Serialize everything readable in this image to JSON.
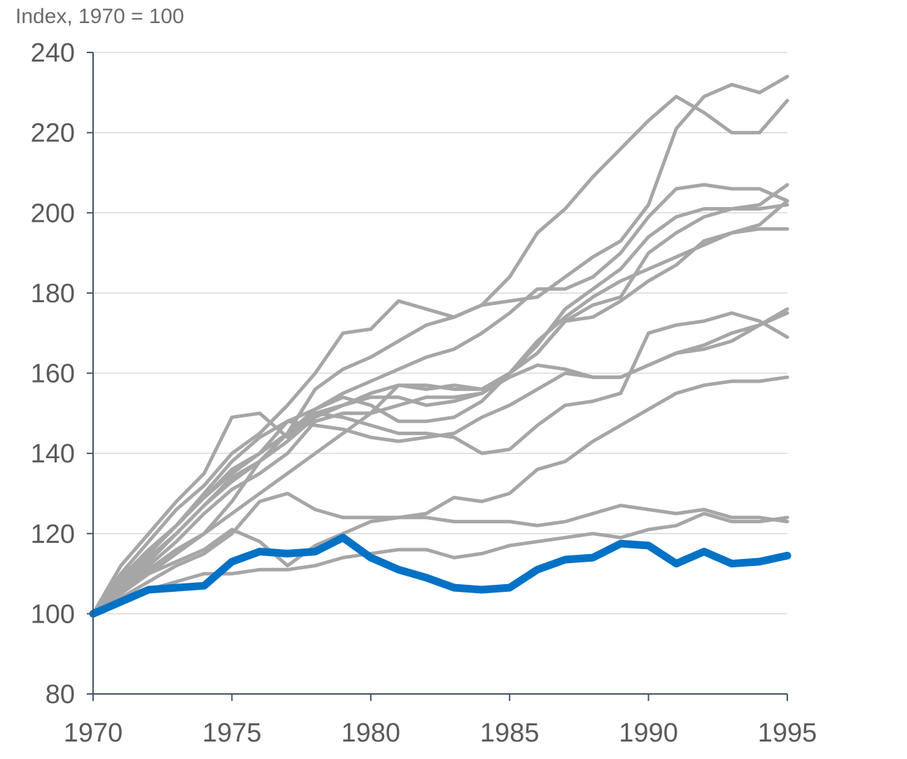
{
  "chart_data": {
    "type": "line",
    "unit_label": "Index, 1970 = 100",
    "x": [
      1970,
      1971,
      1972,
      1973,
      1974,
      1975,
      1976,
      1977,
      1978,
      1979,
      1980,
      1981,
      1982,
      1983,
      1984,
      1985,
      1986,
      1987,
      1988,
      1989,
      1990,
      1991,
      1992,
      1993,
      1994,
      1995
    ],
    "xlim": [
      1970,
      1995
    ],
    "ylim": [
      80,
      240
    ],
    "x_ticks": [
      1970,
      1975,
      1980,
      1985,
      1990,
      1995
    ],
    "y_ticks": [
      80,
      100,
      120,
      140,
      160,
      180,
      200,
      220,
      240
    ],
    "grid": true,
    "colors": {
      "highlight": "#0072c6",
      "others": "#a6a6a6"
    },
    "series": [
      {
        "highlight": true,
        "values": [
          100,
          103,
          106,
          106.5,
          107,
          113,
          115.5,
          115,
          115.5,
          119,
          114,
          111,
          109,
          106.5,
          106,
          106.5,
          111,
          113.5,
          114,
          117.5,
          117,
          112.5,
          115.5,
          112.5,
          113,
          114.5
        ]
      },
      {
        "highlight": false,
        "values": [
          100,
          105,
          110,
          115,
          120,
          128,
          138,
          145,
          156,
          161,
          164,
          168,
          172,
          174,
          177,
          184,
          195,
          201,
          209,
          216,
          223,
          229,
          225,
          220,
          220,
          228
        ]
      },
      {
        "highlight": false,
        "values": [
          100,
          110,
          118,
          126,
          132,
          140,
          145,
          152,
          160,
          170,
          171,
          178,
          176,
          174,
          177,
          178,
          179,
          184,
          189,
          193,
          202,
          221,
          229,
          232,
          230,
          234
        ]
      },
      {
        "highlight": false,
        "values": [
          100,
          109,
          116,
          122,
          129,
          136,
          140,
          148,
          151,
          154,
          152,
          148,
          148,
          149,
          153,
          160,
          165,
          173,
          177,
          179,
          190,
          195,
          199,
          201,
          202,
          207
        ]
      },
      {
        "highlight": false,
        "values": [
          100,
          108,
          114,
          120,
          127,
          133,
          138,
          145,
          151,
          155,
          158,
          161,
          164,
          166,
          170,
          175,
          181,
          181,
          184,
          190,
          199,
          206,
          207,
          206,
          206,
          203
        ]
      },
      {
        "highlight": false,
        "values": [
          100,
          106,
          112,
          118,
          125,
          131,
          135,
          140,
          148,
          150,
          150,
          157,
          156,
          157,
          156,
          160,
          165,
          173,
          174,
          178,
          183,
          187,
          193,
          195,
          197,
          203
        ]
      },
      {
        "highlight": false,
        "values": [
          100,
          108,
          115,
          122,
          129,
          135,
          140,
          145,
          150,
          152,
          154,
          154,
          152,
          153,
          155,
          160,
          167,
          176,
          181,
          186,
          194,
          199,
          201,
          201,
          201,
          202
        ]
      },
      {
        "highlight": false,
        "values": [
          100,
          107,
          113,
          120,
          127,
          134,
          138,
          143,
          149,
          152,
          155,
          157,
          157,
          156,
          156,
          160,
          168,
          174,
          179,
          183,
          186,
          189,
          192,
          195,
          196,
          196
        ]
      },
      {
        "highlight": false,
        "values": [
          100,
          112,
          120,
          128,
          135,
          149,
          150,
          144,
          150,
          149,
          147,
          145,
          145,
          144,
          140,
          141,
          147,
          152,
          153,
          155,
          170,
          172,
          173,
          175,
          173,
          169
        ]
      },
      {
        "highlight": false,
        "values": [
          100,
          108,
          115,
          122,
          130,
          138,
          144,
          148,
          147,
          146,
          144,
          143,
          144,
          145,
          149,
          152,
          156,
          160,
          159,
          159,
          162,
          165,
          166,
          168,
          172,
          176
        ]
      },
      {
        "highlight": false,
        "values": [
          100,
          106,
          111,
          116,
          120,
          125,
          130,
          135,
          140,
          145,
          150,
          152,
          154,
          154,
          155,
          159,
          162,
          161,
          159,
          159,
          162,
          165,
          167,
          170,
          172,
          175
        ]
      },
      {
        "highlight": false,
        "values": [
          100,
          105,
          110,
          113,
          116,
          121,
          118,
          112,
          117,
          120,
          123,
          124,
          125,
          129,
          128,
          130,
          136,
          138,
          143,
          147,
          151,
          155,
          157,
          158,
          158,
          159
        ]
      },
      {
        "highlight": false,
        "values": [
          100,
          104,
          108,
          112,
          115,
          120,
          128,
          130,
          126,
          124,
          124,
          124,
          124,
          123,
          123,
          123,
          122,
          123,
          125,
          127,
          126,
          125,
          126,
          124,
          124,
          123
        ]
      },
      {
        "highlight": false,
        "values": [
          100,
          103,
          106,
          108,
          110,
          110,
          111,
          111,
          112,
          114,
          115,
          116,
          116,
          114,
          115,
          117,
          118,
          119,
          120,
          119,
          121,
          122,
          125,
          123,
          123,
          124
        ]
      }
    ]
  }
}
